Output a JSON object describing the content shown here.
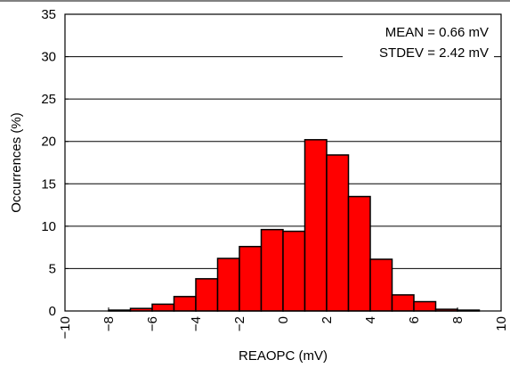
{
  "chart_data": {
    "type": "bar",
    "xlabel": "REAOPC (mV)",
    "ylabel": "Occurrences (%)",
    "xlim": [
      -10,
      10
    ],
    "ylim": [
      0,
      35
    ],
    "xticks": [
      -10,
      -8,
      -6,
      -4,
      -2,
      0,
      2,
      4,
      6,
      8,
      10
    ],
    "yticks": [
      0,
      5,
      10,
      15,
      20,
      25,
      30,
      35
    ],
    "xtick_labels": [
      "−10",
      "−8",
      "−6",
      "−4",
      "−2",
      "0",
      "2",
      "4",
      "6",
      "8",
      "10"
    ],
    "ytick_labels": [
      "0",
      "5",
      "10",
      "15",
      "20",
      "25",
      "30",
      "35"
    ],
    "grid": true,
    "bar_color": "#ff0000",
    "bins": [
      {
        "x0": -10,
        "x1": -9,
        "value": 0
      },
      {
        "x0": -9,
        "x1": -8,
        "value": 0
      },
      {
        "x0": -8,
        "x1": -7,
        "value": 0.1
      },
      {
        "x0": -7,
        "x1": -6,
        "value": 0.3
      },
      {
        "x0": -6,
        "x1": -5,
        "value": 0.8
      },
      {
        "x0": -5,
        "x1": -4,
        "value": 1.7
      },
      {
        "x0": -4,
        "x1": -3,
        "value": 3.8
      },
      {
        "x0": -3,
        "x1": -2,
        "value": 6.2
      },
      {
        "x0": -2,
        "x1": -1,
        "value": 7.6
      },
      {
        "x0": -1,
        "x1": 0,
        "value": 9.6
      },
      {
        "x0": 0,
        "x1": 1,
        "value": 9.4
      },
      {
        "x0": 1,
        "x1": 2,
        "value": 20.2
      },
      {
        "x0": 2,
        "x1": 3,
        "value": 18.4
      },
      {
        "x0": 3,
        "x1": 4,
        "value": 13.5
      },
      {
        "x0": 4,
        "x1": 5,
        "value": 6.1
      },
      {
        "x0": 5,
        "x1": 6,
        "value": 1.9
      },
      {
        "x0": 6,
        "x1": 7,
        "value": 1.1
      },
      {
        "x0": 7,
        "x1": 8,
        "value": 0.2
      },
      {
        "x0": 8,
        "x1": 9,
        "value": 0.1
      },
      {
        "x0": 9,
        "x1": 10,
        "value": 0
      }
    ],
    "annotations": [
      "MEAN = 0.66 mV",
      "STDEV = 2.42 mV"
    ]
  }
}
